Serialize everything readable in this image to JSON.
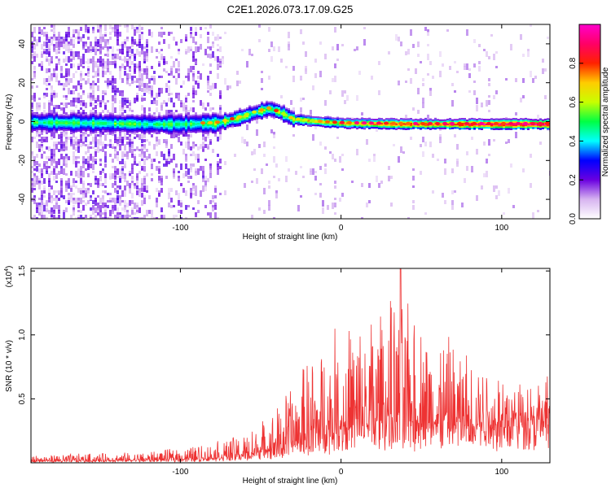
{
  "title": "C2E1.2026.073.17.09.G25",
  "chart_data": [
    {
      "type": "heatmap",
      "xlabel": "Height of straight line (km)",
      "ylabel": "Frequency (Hz)",
      "xlim": [
        -193,
        130
      ],
      "ylim": [
        -50,
        50
      ],
      "x_ticks": [
        -100,
        0,
        100
      ],
      "x_tick_labels": [
        "-100",
        "0",
        "100"
      ],
      "y_ticks": [
        -40,
        -20,
        0,
        20,
        40
      ],
      "y_tick_labels": [
        "-40",
        "-20",
        "0",
        "20",
        "40"
      ],
      "ridge": [
        {
          "x": -193,
          "f": 0.0
        },
        {
          "x": -150,
          "f": -0.5
        },
        {
          "x": -120,
          "f": -1.0
        },
        {
          "x": -100,
          "f": -1.0
        },
        {
          "x": -78,
          "f": -0.5
        },
        {
          "x": -65,
          "f": 2.0
        },
        {
          "x": -52,
          "f": 5.5
        },
        {
          "x": -45,
          "f": 7.0
        },
        {
          "x": -38,
          "f": 5.0
        },
        {
          "x": -30,
          "f": 1.5
        },
        {
          "x": -10,
          "f": 0.0
        },
        {
          "x": 0,
          "f": -0.5
        },
        {
          "x": 40,
          "f": -1.0
        },
        {
          "x": 80,
          "f": -1.0
        },
        {
          "x": 130,
          "f": -1.0
        }
      ],
      "colorbar": {
        "label": "Normalized spectral amplitude",
        "range": [
          0,
          1
        ],
        "ticks": [
          0.0,
          0.2,
          0.4,
          0.6,
          0.8
        ],
        "tick_labels": [
          "0.0",
          "0.2",
          "0.4",
          "0.6",
          "0.8"
        ],
        "stops": [
          "#ffffff",
          "#d7b4f0",
          "#6a00e0",
          "#0000ff",
          "#00ffff",
          "#00ff44",
          "#c8ff00",
          "#ffcc00",
          "#ff2200",
          "#ff0066",
          "#ff00cc"
        ]
      }
    },
    {
      "type": "line",
      "xlabel": "Height of straight line (km)",
      "ylabel": "SNR (10 * v/v)",
      "y_multiplier": "(x10",
      "y_multiplier_exp": "4",
      "y_multiplier_close": ")",
      "xlim": [
        -193,
        130
      ],
      "ylim": [
        0,
        15200
      ],
      "x_ticks": [
        -100,
        0,
        100
      ],
      "x_tick_labels": [
        "-100",
        "0",
        "100"
      ],
      "y_ticks": [
        5000,
        10000,
        15000
      ],
      "y_tick_labels": [
        "0.5",
        "1.0",
        "1.5"
      ],
      "color": "#ee3333",
      "envelope": [
        {
          "x": -193,
          "base": 200,
          "amp": 500
        },
        {
          "x": -120,
          "base": 300,
          "amp": 700
        },
        {
          "x": -85,
          "base": 500,
          "amp": 1200
        },
        {
          "x": -60,
          "base": 900,
          "amp": 1800
        },
        {
          "x": -40,
          "base": 1800,
          "amp": 3500
        },
        {
          "x": -25,
          "base": 2800,
          "amp": 6000
        },
        {
          "x": -10,
          "base": 3800,
          "amp": 8000
        },
        {
          "x": 10,
          "base": 4800,
          "amp": 9000
        },
        {
          "x": 30,
          "base": 5200,
          "amp": 10000
        },
        {
          "x": 40,
          "base": 5400,
          "amp": 9500
        },
        {
          "x": 60,
          "base": 5400,
          "amp": 7500
        },
        {
          "x": 90,
          "base": 5600,
          "amp": 5000
        },
        {
          "x": 130,
          "base": 6200,
          "amp": 3200
        }
      ],
      "peak": {
        "x": 37,
        "y": 15200
      }
    }
  ]
}
